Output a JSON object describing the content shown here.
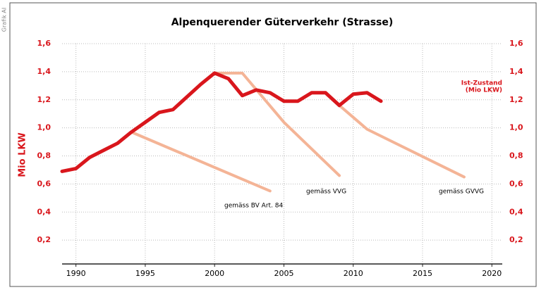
{
  "chart_data": {
    "type": "line",
    "title": "Alpenquerender Güterverkehr (Strasse)",
    "ylabel": "Mio LKW",
    "source": "Grafik AI",
    "xlim": [
      1989,
      2020.75
    ],
    "xticks": [
      1990,
      1995,
      2000,
      2005,
      2010,
      2015,
      2020
    ],
    "ylim": [
      0,
      1.6
    ],
    "yticks": [
      {
        "value": 0.2,
        "label": "0,2"
      },
      {
        "value": 0.4,
        "label": "0,4"
      },
      {
        "value": 0.6,
        "label": "0,6"
      },
      {
        "value": 0.8,
        "label": "0,8"
      },
      {
        "value": 1.0,
        "label": "1,0"
      },
      {
        "value": 1.2,
        "label": "1,2"
      },
      {
        "value": 1.4,
        "label": "1,4"
      },
      {
        "value": 1.6,
        "label": "1,6"
      }
    ],
    "y2lim": [
      0,
      1.6
    ],
    "y2ticks": [
      {
        "value": 0.2,
        "label": "0,2"
      },
      {
        "value": 0.4,
        "label": "0,4"
      },
      {
        "value": 0.6,
        "label": "0,6"
      },
      {
        "value": 0.8,
        "label": "0,8"
      },
      {
        "value": 1.0,
        "label": "1,0"
      },
      {
        "value": 1.2,
        "label": "1,2"
      },
      {
        "value": 1.4,
        "label": "1,4"
      },
      {
        "value": 1.6,
        "label": "1,6"
      }
    ],
    "grid": true,
    "series": [
      {
        "name": "gemäss BV Art. 84",
        "color": "#f4b496",
        "x": [
          1994,
          2004
        ],
        "values": [
          0.97,
          0.55
        ]
      },
      {
        "name": "gemäss VVG",
        "color": "#f4b496",
        "x": [
          2000,
          2002,
          2005,
          2009
        ],
        "values": [
          1.39,
          1.39,
          1.04,
          0.66
        ]
      },
      {
        "name": "gemäss GVVG",
        "color": "#f4b496",
        "x": [
          2009,
          2011,
          2018
        ],
        "values": [
          1.16,
          0.99,
          0.65
        ]
      },
      {
        "name": "Ist-Zustand",
        "unit_label": "(Mio LKW)",
        "color": "#d9161c",
        "x": [
          1989,
          1990,
          1991,
          1992,
          1993,
          1994,
          1995,
          1996,
          1997,
          1998,
          1999,
          2000,
          2001,
          2002,
          2003,
          2004,
          2005,
          2006,
          2007,
          2008,
          2009,
          2010,
          2011,
          2012
        ],
        "values": [
          0.69,
          0.71,
          0.79,
          0.84,
          0.89,
          0.97,
          1.04,
          1.11,
          1.13,
          1.22,
          1.31,
          1.39,
          1.35,
          1.23,
          1.27,
          1.25,
          1.19,
          1.19,
          1.25,
          1.25,
          1.16,
          1.24,
          1.25,
          1.19
        ]
      }
    ]
  }
}
